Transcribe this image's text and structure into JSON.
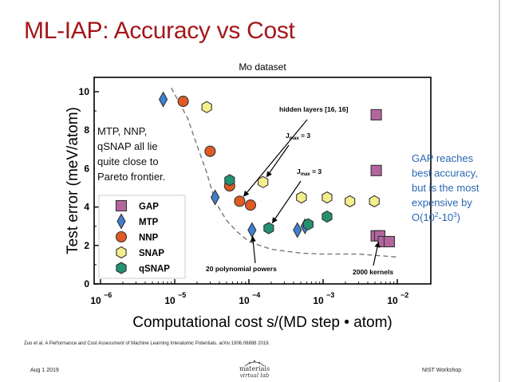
{
  "slide": {
    "title": "ML-IAP: Accuracy vs Cost",
    "citation": "Zuo et al.  A Performance and Cost Assessment of Machine Learning Interatomic Potentials. arXiv:1906.08888 2019.",
    "date": "Aug 1 2019",
    "venue": "NIST Workshop",
    "logo_line1": "materials",
    "logo_line2": "virtual lab"
  },
  "colors": {
    "title": "#a3171a",
    "gap": "#b5659e",
    "mtp": "#3f7fd1",
    "nnp": "#e15a22",
    "snap": "#f4ee8c",
    "qsnap": "#249171",
    "gap_note": "#2a67b2"
  },
  "chart_data": {
    "type": "scatter",
    "title": "Mo dataset",
    "xlabel": "Computational cost s/(MD step • atom)",
    "ylabel": "Test error (meV/atom)",
    "x_scale": "log",
    "xlim": [
      1e-06,
      0.01
    ],
    "ylim": [
      0,
      10.5
    ],
    "x_ticks": [
      {
        "value": 1e-06,
        "base": "10",
        "exp": "−6"
      },
      {
        "value": 1e-05,
        "base": "10",
        "exp": "−5"
      },
      {
        "value": 0.0001,
        "base": "10",
        "exp": "−4"
      },
      {
        "value": 0.001,
        "base": "10",
        "exp": "−3"
      },
      {
        "value": 0.01,
        "base": "10",
        "exp": "−2"
      }
    ],
    "y_ticks": [
      0,
      2,
      4,
      6,
      8,
      10
    ],
    "grid": false,
    "legend_position": "bottom-left",
    "series": [
      {
        "name": "GAP",
        "marker": "square",
        "color": "#b5659e",
        "points": [
          [
            0.0052,
            8.8
          ],
          [
            0.0052,
            5.9
          ],
          [
            0.0052,
            2.5
          ],
          [
            0.0058,
            2.5
          ],
          [
            0.0065,
            2.2
          ],
          [
            0.0078,
            2.2
          ]
        ]
      },
      {
        "name": "MTP",
        "marker": "diamond",
        "color": "#3f7fd1",
        "points": [
          [
            7e-06,
            9.6
          ],
          [
            3.5e-05,
            4.5
          ],
          [
            0.00011,
            2.8
          ],
          [
            0.00045,
            2.8
          ],
          [
            0.00057,
            3.0
          ]
        ]
      },
      {
        "name": "NNP",
        "marker": "circle",
        "color": "#e15a22",
        "points": [
          [
            1.3e-05,
            9.5
          ],
          [
            3e-05,
            6.9
          ],
          [
            5.5e-05,
            5.1
          ],
          [
            7.5e-05,
            4.3
          ],
          [
            0.000105,
            4.1
          ]
        ]
      },
      {
        "name": "SNAP",
        "marker": "hexagon",
        "color": "#f4ee8c",
        "points": [
          [
            2.7e-05,
            9.2
          ],
          [
            0.000155,
            5.3
          ],
          [
            0.00051,
            4.5
          ],
          [
            0.00113,
            4.5
          ],
          [
            0.0023,
            4.3
          ],
          [
            0.0049,
            4.3
          ]
        ]
      },
      {
        "name": "qSNAP",
        "marker": "hexagon",
        "color": "#249171",
        "points": [
          [
            5.5e-05,
            5.4
          ],
          [
            0.000185,
            2.9
          ],
          [
            0.00063,
            3.1
          ],
          [
            0.00113,
            3.5
          ]
        ]
      }
    ],
    "pareto_front": [
      [
        9e-06,
        10.2
      ],
      [
        1.5e-05,
        8.6
      ],
      [
        2e-05,
        7.2
      ],
      [
        2.7e-05,
        5.8
      ],
      [
        3.5e-05,
        4.3
      ],
      [
        5e-05,
        3.3
      ],
      [
        7e-05,
        2.7
      ],
      [
        0.0001,
        2.2
      ],
      [
        0.0002,
        1.8
      ],
      [
        0.0005,
        1.6
      ],
      [
        0.001,
        1.55
      ],
      [
        0.003,
        1.55
      ],
      [
        0.01,
        1.4
      ]
    ],
    "annotations": [
      {
        "id": "hidden",
        "text": "hidden layers [16, 16]",
        "target": [
          7.5e-05,
          4.3
        ]
      },
      {
        "id": "jmax_a",
        "text": "J",
        "sub": "max",
        "suffix": " = 3",
        "target": [
          0.000155,
          5.3
        ]
      },
      {
        "id": "jmax_b",
        "text": "J",
        "sub": "max",
        "suffix": " = 3",
        "target": [
          0.000185,
          2.9
        ]
      },
      {
        "id": "poly",
        "text": "20 polynomial powers",
        "target": [
          0.00011,
          2.8
        ]
      },
      {
        "id": "kernels",
        "text": "2000 kernels",
        "target": [
          0.0058,
          2.5
        ]
      }
    ],
    "notes": {
      "left": [
        "MTP, NNP,",
        "qSNAP all lie",
        "quite close to",
        "Pareto frontier."
      ],
      "right": [
        "GAP reaches",
        "best accuracy,",
        "but is the most",
        "expensive by"
      ],
      "right_last": {
        "pre": "O(10",
        "sup1": "2",
        "mid": "-10",
        "sup2": "3",
        "post": ")"
      }
    }
  }
}
